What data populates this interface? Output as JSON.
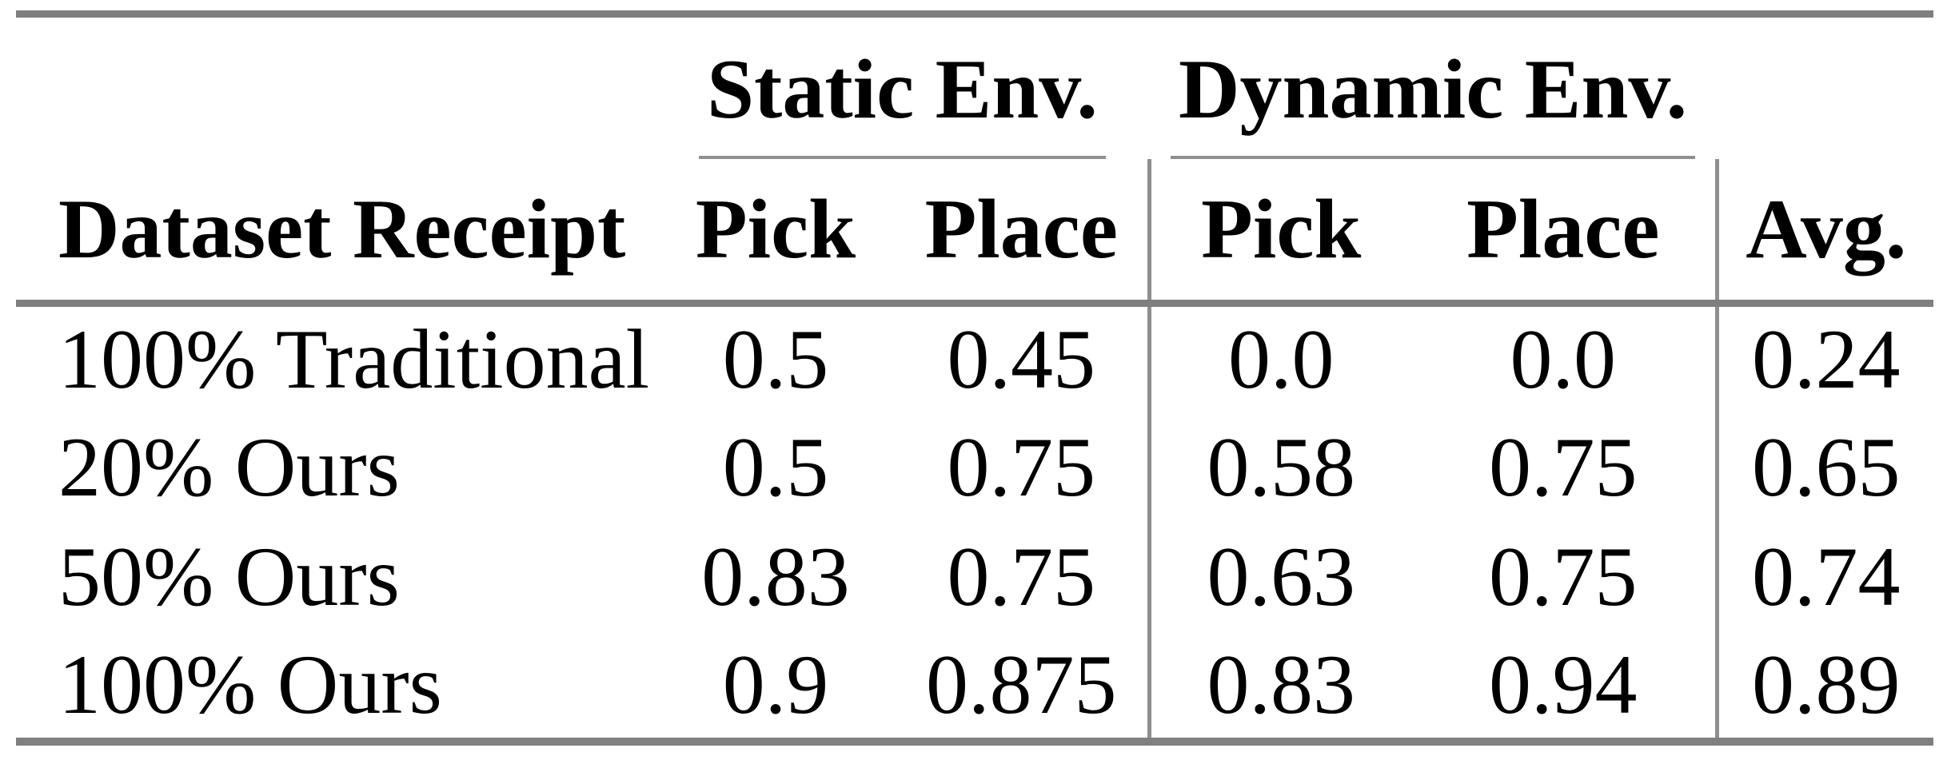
{
  "table": {
    "group_headers": [
      {
        "label": "Static Env.",
        "spans": [
          "Pick",
          "Place"
        ]
      },
      {
        "label": "Dynamic Env.",
        "spans": [
          "Pick",
          "Place"
        ]
      }
    ],
    "columns": [
      "Dataset Receipt",
      "Pick",
      "Place",
      "Pick",
      "Place",
      "Avg."
    ],
    "rows": [
      {
        "label": "100% Traditional",
        "values": [
          "0.5",
          "0.45",
          "0.0",
          "0.0",
          "0.24"
        ]
      },
      {
        "label": "20% Ours",
        "values": [
          "0.5",
          "0.75",
          "0.58",
          "0.75",
          "0.65"
        ]
      },
      {
        "label": "50% Ours",
        "values": [
          "0.83",
          "0.75",
          "0.63",
          "0.75",
          "0.74"
        ]
      },
      {
        "label": "100% Ours",
        "values": [
          "0.9",
          "0.875",
          "0.83",
          "0.94",
          "0.89"
        ]
      }
    ],
    "colors": {
      "text": "#000000",
      "background": "#ffffff",
      "heavy_rule": "#7f7f7f",
      "light_rule": "#8f8f8f"
    }
  }
}
